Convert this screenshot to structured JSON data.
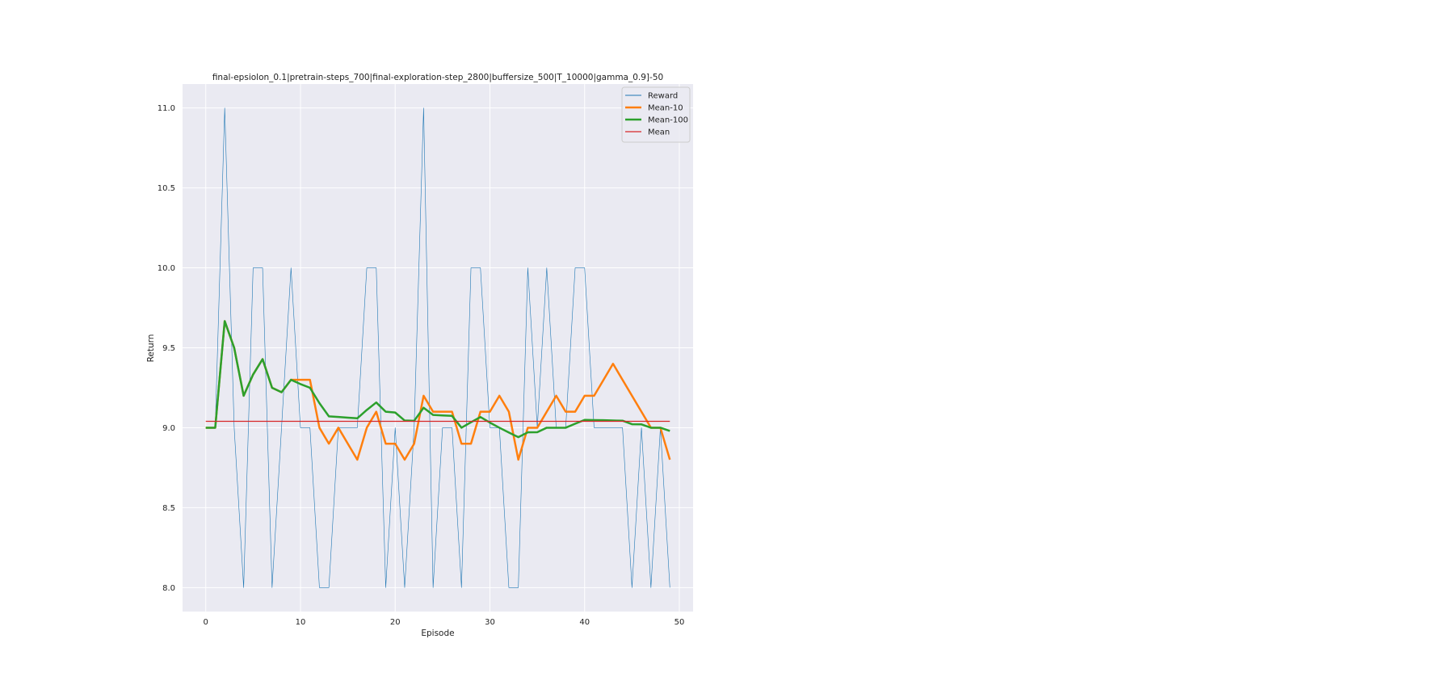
{
  "chart_data": {
    "type": "line",
    "title": "final-epsiolon_0.1|pretrain-steps_700|final-exploration-step_2800|buffersize_500|T_10000|gamma_0.9]-50",
    "xlabel": "Episode",
    "ylabel": "Return",
    "xlim": [
      -2.45,
      51.45
    ],
    "ylim": [
      7.85,
      11.15
    ],
    "xticks": [
      0,
      10,
      20,
      30,
      40,
      50
    ],
    "yticks": [
      8.0,
      8.5,
      9.0,
      9.5,
      10.0,
      10.5,
      11.0
    ],
    "xtick_labels": [
      "0",
      "10",
      "20",
      "30",
      "40",
      "50"
    ],
    "ytick_labels": [
      "8.0",
      "8.5",
      "9.0",
      "9.5",
      "10.0",
      "10.5",
      "11.0"
    ],
    "grid": true,
    "legend_position": "top-right",
    "background": "#eaeaf2",
    "x": [
      0,
      1,
      2,
      3,
      4,
      5,
      6,
      7,
      8,
      9,
      10,
      11,
      12,
      13,
      14,
      15,
      16,
      17,
      18,
      19,
      20,
      21,
      22,
      23,
      24,
      25,
      26,
      27,
      28,
      29,
      30,
      31,
      32,
      33,
      34,
      35,
      36,
      37,
      38,
      39,
      40,
      41,
      42,
      43,
      44,
      45,
      46,
      47,
      48,
      49
    ],
    "series": [
      {
        "name": "Reward",
        "color": "#1f77b4",
        "linewidth": 0.6,
        "values": [
          9,
          9,
          11,
          9,
          8,
          10,
          10,
          8,
          9,
          10,
          9,
          9,
          8,
          8,
          9,
          9,
          9,
          10,
          10,
          8,
          9,
          8,
          9,
          11,
          8,
          9,
          9,
          8,
          10,
          10,
          9,
          9,
          8,
          8,
          10,
          9,
          10,
          9,
          9,
          10,
          10,
          9,
          9,
          9,
          9,
          8,
          9,
          8,
          9,
          8
        ]
      },
      {
        "name": "Mean-10",
        "color": "#ff7f0e",
        "linewidth": 2.5,
        "values": [
          9,
          9,
          9.667,
          9.5,
          9.2,
          9.333,
          9.429,
          9.25,
          9.222,
          9.3,
          9.3,
          9.3,
          9.0,
          8.9,
          9.0,
          8.9,
          8.8,
          9.0,
          9.1,
          8.9,
          8.9,
          8.8,
          8.9,
          9.2,
          9.1,
          9.1,
          9.1,
          8.9,
          8.9,
          9.1,
          9.1,
          9.2,
          9.1,
          8.8,
          9.0,
          9.0,
          9.1,
          9.2,
          9.1,
          9.1,
          9.2,
          9.2,
          9.3,
          9.4,
          9.3,
          9.2,
          9.1,
          9.0,
          9.0,
          8.8
        ]
      },
      {
        "name": "Mean-100",
        "color": "#2ca02c",
        "linewidth": 2.5,
        "values": [
          9,
          9,
          9.667,
          9.5,
          9.2,
          9.333,
          9.429,
          9.25,
          9.222,
          9.3,
          9.273,
          9.25,
          9.154,
          9.071,
          9.067,
          9.063,
          9.059,
          9.111,
          9.158,
          9.1,
          9.095,
          9.045,
          9.043,
          9.125,
          9.08,
          9.077,
          9.074,
          9.0,
          9.034,
          9.067,
          9.032,
          9.0,
          8.97,
          8.941,
          8.971,
          8.972,
          9.0,
          9.0,
          9.0,
          9.025,
          9.049,
          9.048,
          9.047,
          9.045,
          9.044,
          9.022,
          9.021,
          9.0,
          9.0,
          8.98
        ]
      },
      {
        "name": "Mean",
        "color": "#d62728",
        "linewidth": 1.2,
        "values": [
          9.04,
          9.04,
          9.04,
          9.04,
          9.04,
          9.04,
          9.04,
          9.04,
          9.04,
          9.04,
          9.04,
          9.04,
          9.04,
          9.04,
          9.04,
          9.04,
          9.04,
          9.04,
          9.04,
          9.04,
          9.04,
          9.04,
          9.04,
          9.04,
          9.04,
          9.04,
          9.04,
          9.04,
          9.04,
          9.04,
          9.04,
          9.04,
          9.04,
          9.04,
          9.04,
          9.04,
          9.04,
          9.04,
          9.04,
          9.04,
          9.04,
          9.04,
          9.04,
          9.04,
          9.04,
          9.04,
          9.04,
          9.04,
          9.04,
          9.04
        ]
      }
    ]
  }
}
